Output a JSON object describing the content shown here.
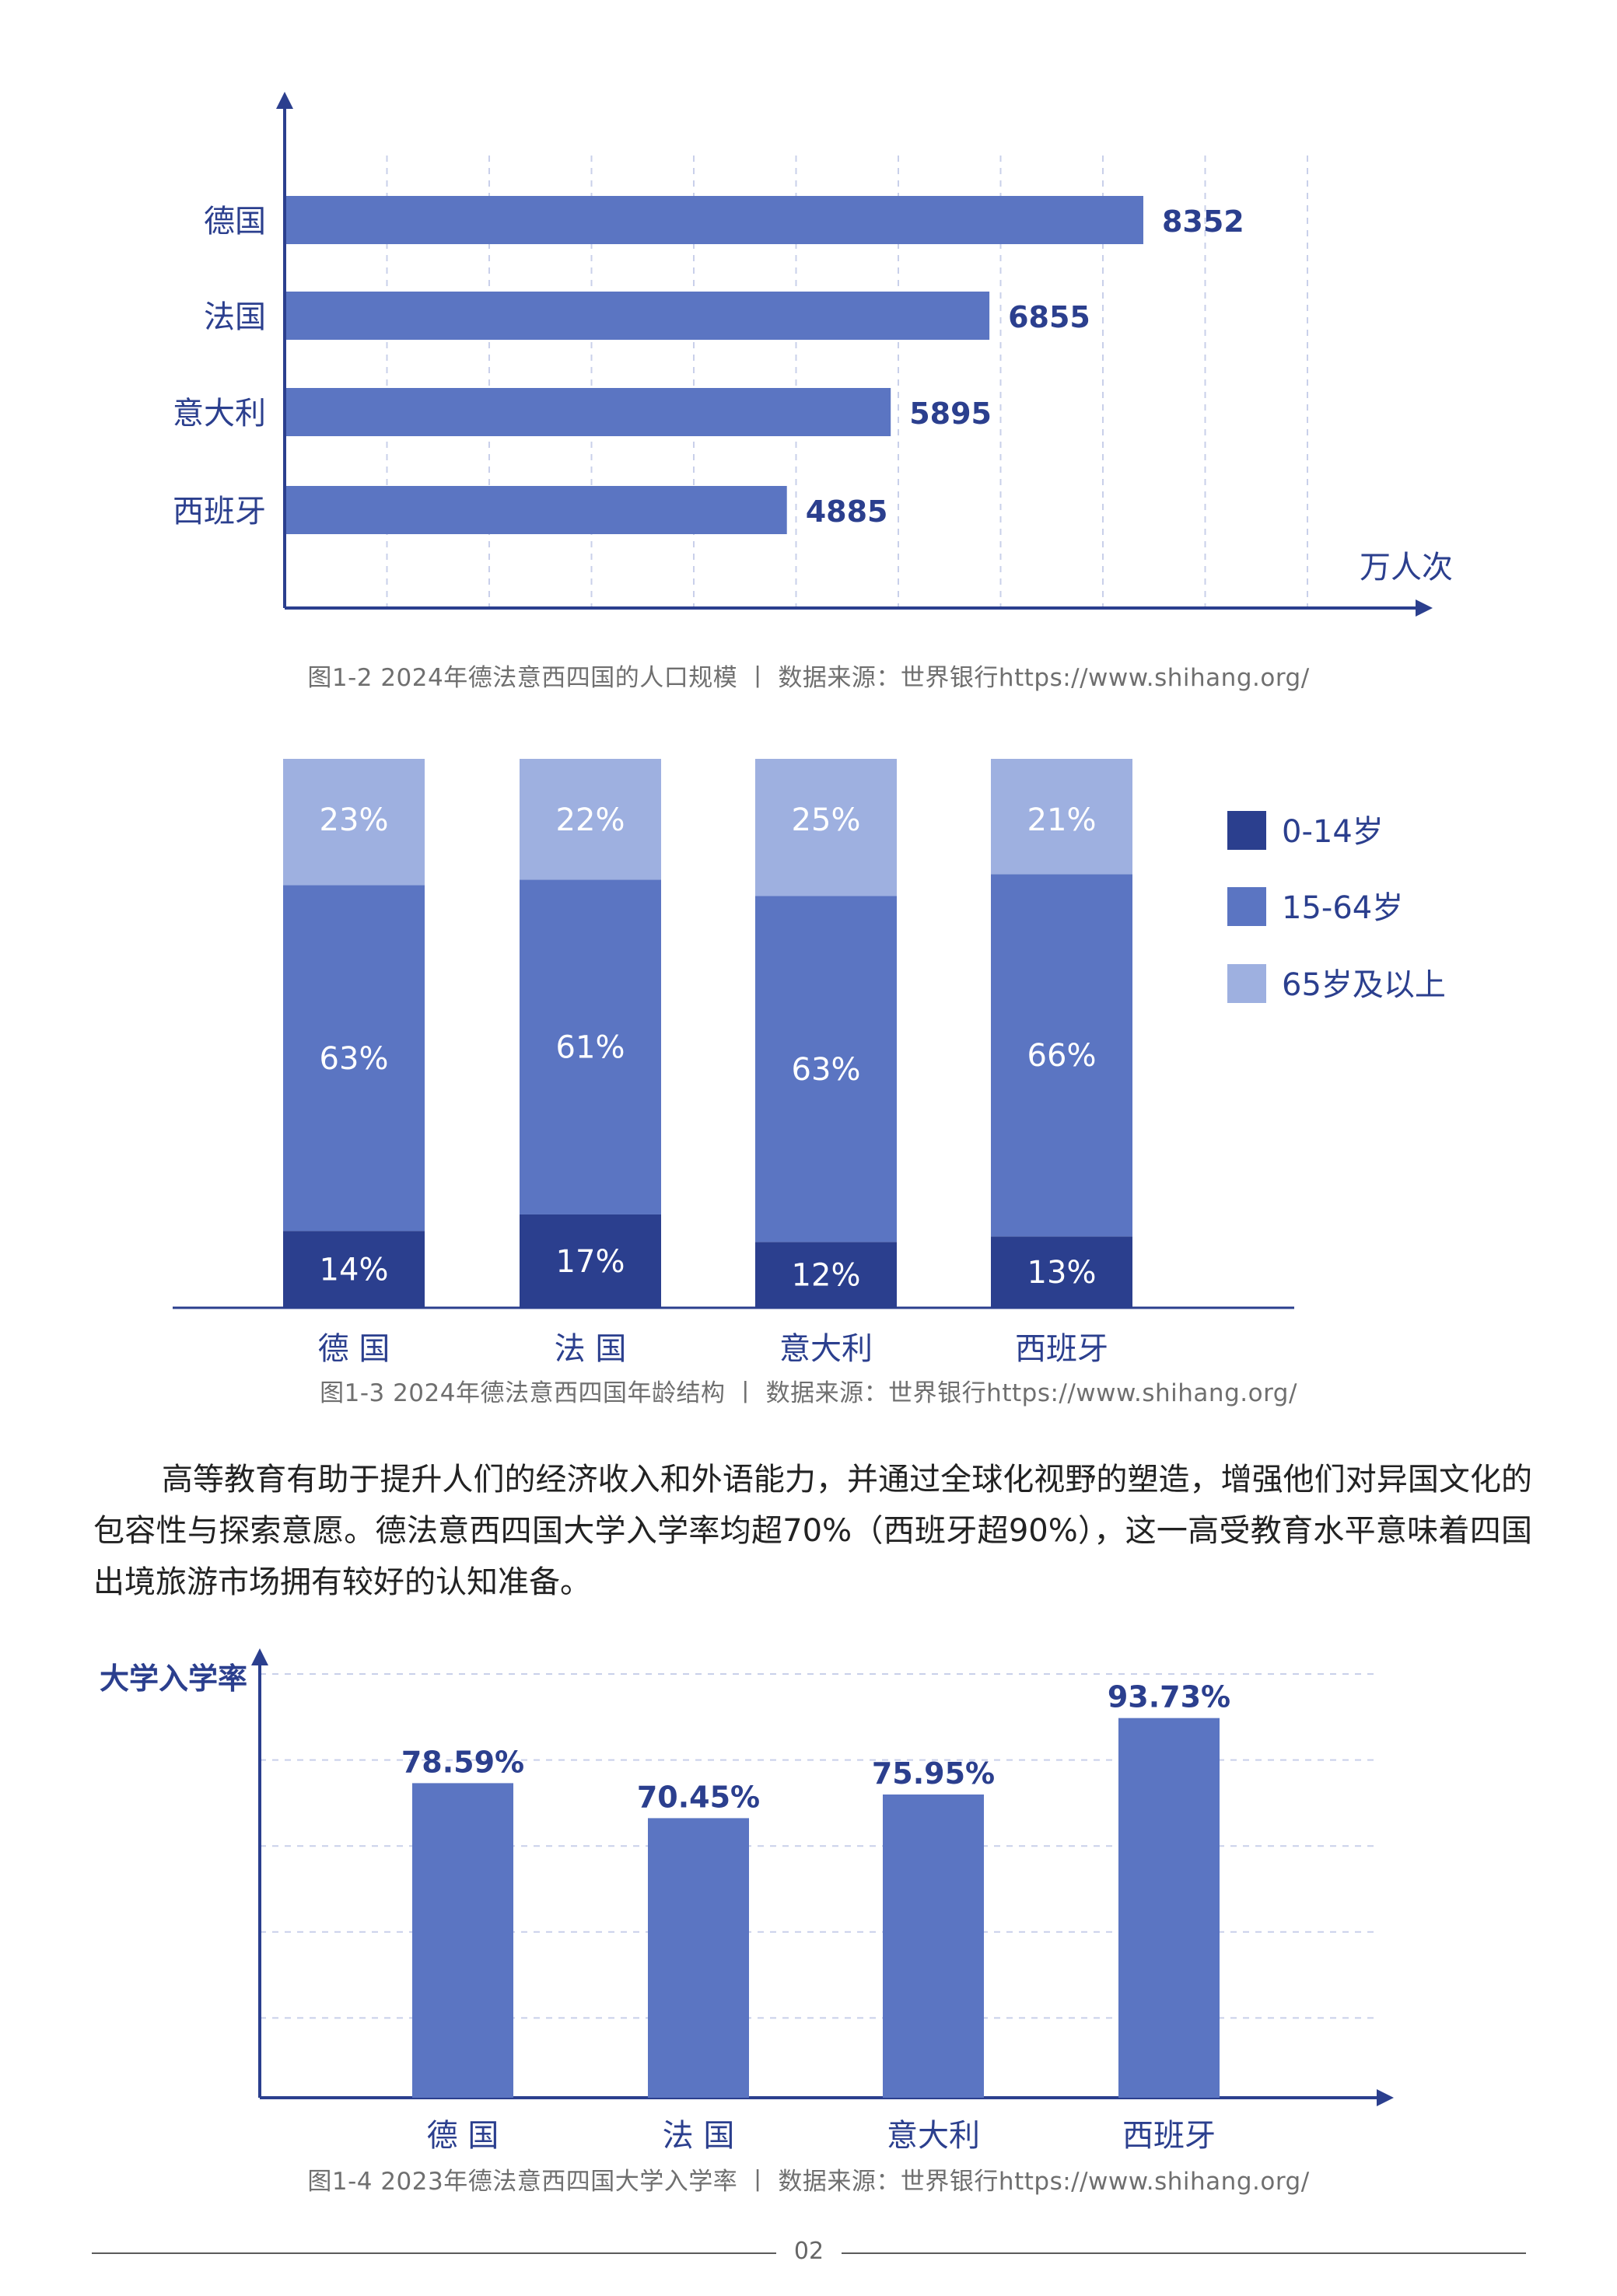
{
  "colors": {
    "dark": "#2b3f8e",
    "mid": "#5b75c2",
    "light": "#9eb0e0",
    "axis": "#2b3f8e",
    "label": "#2b3f8e"
  },
  "chart_data": [
    {
      "id": "population",
      "type": "bar",
      "orientation": "horizontal",
      "categories": [
        "德国",
        "法国",
        "意大利",
        "西班牙"
      ],
      "values": [
        8352,
        6855,
        5895,
        4885
      ],
      "unit_label": "万人次",
      "xlim": [
        0,
        11000
      ],
      "grid": true,
      "caption": "图1-2 2024年德法意西四国的人口规模 丨 数据来源：世界银行https://www.shihang.org/"
    },
    {
      "id": "age",
      "type": "bar",
      "stacked": true,
      "categories": [
        "德 国",
        "法 国",
        "意大利",
        "西班牙"
      ],
      "series": [
        {
          "name": "0-14岁",
          "values": [
            14,
            17,
            12,
            13
          ],
          "labels": [
            "14%",
            "17%",
            "12%",
            "13%"
          ]
        },
        {
          "name": "15-64岁",
          "values": [
            63,
            61,
            63,
            66
          ],
          "labels": [
            "63%",
            "61%",
            "63%",
            "66%"
          ]
        },
        {
          "name": "65岁及以上",
          "values": [
            23,
            22,
            25,
            21
          ],
          "labels": [
            "23%",
            "22%",
            "25%",
            "21%"
          ]
        }
      ],
      "legend_position": "right",
      "caption": "图1-3 2024年德法意西四国年龄结构 丨 数据来源：世界银行https://www.shihang.org/"
    },
    {
      "id": "enrollment",
      "type": "bar",
      "categories": [
        "德 国",
        "法 国",
        "意大利",
        "西班牙"
      ],
      "values": [
        78.59,
        70.45,
        75.95,
        93.73
      ],
      "labels": [
        "78.59%",
        "70.45%",
        "75.95%",
        "93.73%"
      ],
      "ylabel": "大学入学率",
      "ylim": [
        0,
        100
      ],
      "grid": true,
      "caption": "图1-4 2023年德法意西四国大学入学率 丨 数据来源：世界银行https://www.shihang.org/"
    }
  ],
  "paragraph": "高等教育有助于提升人们的经济收入和外语能力，并通过全球化视野的塑造，增强他们对异国文化的包容性与探索意愿。德法意西四国大学入学率均超70%（西班牙超90%），这一高受教育水平意味着四国出境旅游市场拥有较好的认知准备。",
  "page_number": "02"
}
